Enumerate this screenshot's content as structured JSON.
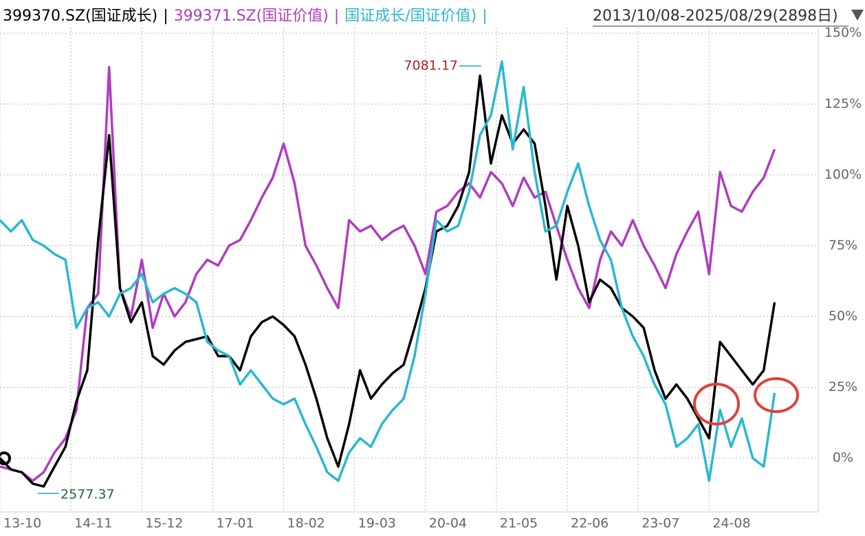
{
  "chart_data": {
    "type": "line",
    "range_label": "2013/10/08-2025/08/29(2898日)",
    "separator": "|",
    "annotations": [
      {
        "text": "7081.17",
        "color": "#b22222"
      },
      {
        "text": "2577.37",
        "color": "#1d6b3a"
      }
    ],
    "x": [
      0,
      2,
      4,
      6,
      8,
      10,
      12,
      14,
      16,
      18,
      20,
      22,
      24,
      26,
      28,
      30,
      32,
      34,
      36,
      38,
      40,
      42,
      44,
      46,
      48,
      50,
      52,
      54,
      56,
      58,
      60,
      62,
      64,
      66,
      68,
      70,
      72,
      74,
      76,
      78,
      80,
      82,
      84,
      86,
      88,
      90,
      92,
      94,
      96,
      98,
      100,
      102,
      104,
      106,
      108,
      110,
      112,
      114,
      116,
      118,
      120,
      122,
      124,
      126,
      128,
      130,
      132,
      134,
      136,
      138,
      140,
      142
    ],
    "xlim": [
      0,
      150
    ],
    "xticks": [
      {
        "value": 0,
        "label": "13-10"
      },
      {
        "value": 13,
        "label": "14-11"
      },
      {
        "value": 26,
        "label": "15-12"
      },
      {
        "value": 39,
        "label": "17-01"
      },
      {
        "value": 52,
        "label": "18-02"
      },
      {
        "value": 65,
        "label": "19-03"
      },
      {
        "value": 78,
        "label": "20-04"
      },
      {
        "value": 91,
        "label": "21-05"
      },
      {
        "value": 104,
        "label": "22-06"
      },
      {
        "value": 117,
        "label": "23-07"
      },
      {
        "value": 130,
        "label": "24-08"
      }
    ],
    "ylim": [
      -19,
      152
    ],
    "yticks": [
      {
        "value": 0,
        "label": "0%"
      },
      {
        "value": 25,
        "label": "25%"
      },
      {
        "value": 50,
        "label": "50%"
      },
      {
        "value": 75,
        "label": "75%"
      },
      {
        "value": 100,
        "label": "100%"
      },
      {
        "value": 125,
        "label": "125%"
      },
      {
        "value": 150,
        "label": "150%"
      }
    ],
    "grid": true,
    "series": [
      {
        "name": "399370.SZ(国证成长)",
        "color": "#000000",
        "values": [
          0,
          -4,
          -5,
          -9,
          -10,
          -3,
          4,
          20,
          31,
          77,
          114,
          60,
          48,
          55,
          36,
          33,
          38,
          41,
          42,
          43,
          36,
          36,
          31,
          43,
          48,
          50,
          47,
          43,
          33,
          21,
          7,
          -3,
          12,
          31,
          21,
          26,
          30,
          33,
          46,
          60,
          80,
          82,
          89,
          101,
          135,
          104,
          121,
          111,
          116,
          111,
          89,
          63,
          89,
          75,
          55,
          63,
          60,
          53,
          50,
          46,
          31,
          21,
          26,
          21,
          14,
          7,
          41,
          36,
          31,
          26,
          31,
          55
        ]
      },
      {
        "name": "399371.SZ(国证价值)",
        "color": "#b03cc0",
        "values": [
          -3,
          -4,
          -5,
          -8,
          -5,
          2,
          7,
          17,
          53,
          58,
          138,
          60,
          50,
          70,
          46,
          58,
          50,
          55,
          65,
          70,
          68,
          75,
          77,
          84,
          92,
          99,
          111,
          97,
          75,
          68,
          60,
          53,
          84,
          80,
          82,
          77,
          80,
          82,
          75,
          65,
          87,
          89,
          94,
          97,
          92,
          101,
          97,
          89,
          99,
          92,
          94,
          82,
          70,
          60,
          53,
          70,
          80,
          75,
          84,
          75,
          68,
          60,
          72,
          80,
          87,
          65,
          101,
          89,
          87,
          94,
          99,
          109
        ]
      },
      {
        "name": "国证成长/国证价值)",
        "color": "#29b8d0",
        "values": [
          84,
          80,
          84,
          77,
          75,
          72,
          70,
          46,
          53,
          55,
          50,
          58,
          60,
          65,
          55,
          58,
          60,
          58,
          55,
          41,
          38,
          36,
          26,
          31,
          26,
          21,
          19,
          21,
          12,
          4,
          -5,
          -8,
          2,
          7,
          4,
          12,
          17,
          21,
          36,
          58,
          84,
          80,
          82,
          94,
          114,
          121,
          140,
          109,
          131,
          101,
          80,
          82,
          94,
          104,
          89,
          77,
          70,
          53,
          43,
          36,
          26,
          19,
          4,
          7,
          12,
          -8,
          17,
          4,
          14,
          0,
          -3,
          23
        ]
      }
    ]
  }
}
